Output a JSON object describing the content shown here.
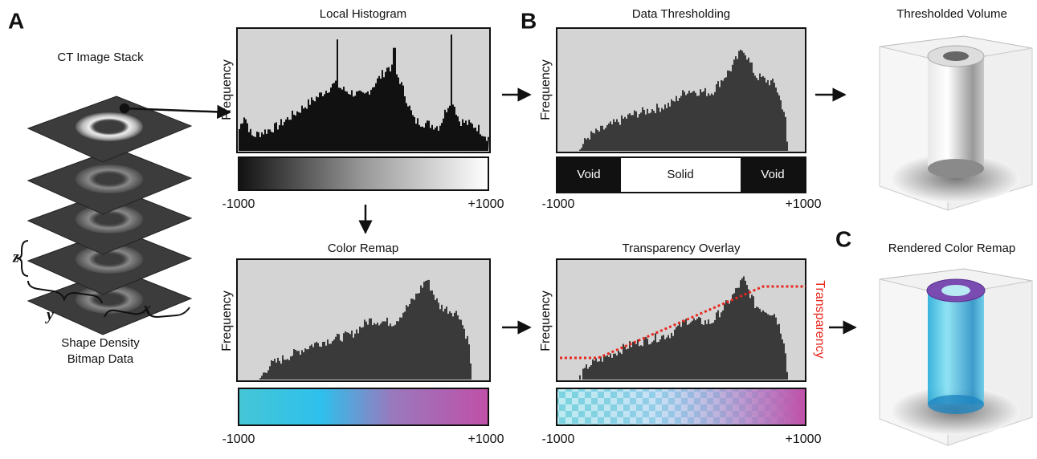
{
  "labels": {
    "a": "A",
    "b": "B",
    "c": "C"
  },
  "stack": {
    "title": "CT Image Stack",
    "z": "z",
    "y": "y",
    "x": "x",
    "caption_1": "Shape Density",
    "caption_2": "Bitmap Data"
  },
  "local_histogram": {
    "title": "Local Histogram",
    "y_label": "Frequency",
    "x_min": "-1000",
    "x_max": "+1000"
  },
  "data_thresholding": {
    "title": "Data Thresholding",
    "y_label": "Frequency",
    "x_min": "-1000",
    "x_max": "+1000",
    "bands": [
      "Void",
      "Solid",
      "Void"
    ]
  },
  "color_remap": {
    "title": "Color Remap",
    "y_label": "Frequency",
    "x_min": "-1000",
    "x_max": "+1000"
  },
  "transparency_overlay": {
    "title": "Transparency Overlay",
    "y_label": "Frequency",
    "x_min": "-1000",
    "x_max": "+1000",
    "curve_label": "Transparency"
  },
  "thresholded_volume": {
    "title": "Thresholded Volume"
  },
  "rendered_color_remap": {
    "title": "Rendered Color Remap"
  }
}
